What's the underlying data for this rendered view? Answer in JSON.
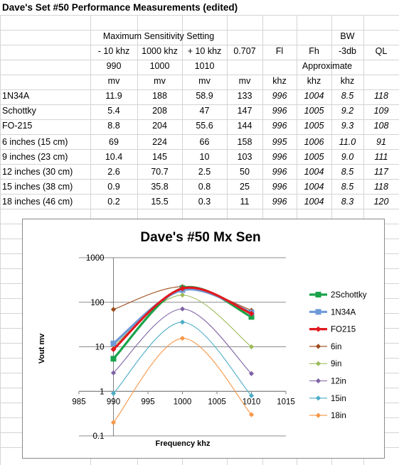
{
  "sheet": {
    "title": "Dave's Set #50 Performance Measurements (edited)",
    "group_header": "Maximum Sensitivity Setting",
    "bw_label": "BW",
    "approx_label": "Approximate",
    "col_heads": [
      "- 10 khz",
      "1000 khz",
      "+ 10 khz",
      "0.707",
      "Fl",
      "Fh",
      "-3db",
      "QL"
    ],
    "freq_row": [
      "990",
      "1000",
      "1010"
    ],
    "unit_row": [
      "mv",
      "mv",
      "mv",
      "mv",
      "khz",
      "khz",
      "khz"
    ],
    "rows": [
      {
        "label": "1N34A",
        "v": [
          "11.9",
          "188",
          "58.9",
          "133",
          "996",
          "1004",
          "8.5",
          "118"
        ]
      },
      {
        "label": "Schottky",
        "v": [
          "5.4",
          "208",
          "47",
          "147",
          "996",
          "1005",
          "9.2",
          "109"
        ]
      },
      {
        "label": "FO-215",
        "v": [
          "8.8",
          "204",
          "55.6",
          "144",
          "996",
          "1005",
          "9.3",
          "108"
        ]
      },
      {
        "label": "6 inches (15 cm)",
        "v": [
          "69",
          "224",
          "66",
          "158",
          "995",
          "1006",
          "11.0",
          "91"
        ]
      },
      {
        "label": "9 inches (23 cm)",
        "v": [
          "10.4",
          "145",
          "10",
          "103",
          "996",
          "1005",
          "9.0",
          "111"
        ]
      },
      {
        "label": "12 inches (30 cm)",
        "v": [
          "2.6",
          "70.7",
          "2.5",
          "50",
          "996",
          "1004",
          "8.5",
          "117"
        ]
      },
      {
        "label": "15 inches (38 cm)",
        "v": [
          "0.9",
          "35.8",
          "0.8",
          "25",
          "996",
          "1004",
          "8.5",
          "118"
        ]
      },
      {
        "label": "18 inches (46 cm)",
        "v": [
          "0.2",
          "15.5",
          "0.3",
          "11",
          "996",
          "1004",
          "8.3",
          "120"
        ]
      }
    ]
  },
  "chart_data": {
    "type": "line",
    "title": "Dave's #50 Mx Sen",
    "xlabel": "Frequency khz",
    "ylabel": "Vout mv",
    "xlim": [
      985,
      1015
    ],
    "x_ticks": [
      "985",
      "990",
      "995",
      "1000",
      "1005",
      "1010",
      "1015"
    ],
    "y_scale": "log",
    "ylim": [
      0.1,
      1000
    ],
    "y_ticks": [
      "0.1",
      "1",
      "10",
      "100",
      "1000"
    ],
    "grid": "horizontal",
    "legend_position": "right",
    "x": [
      990,
      1000,
      1010
    ],
    "series": [
      {
        "name": "2Schottky",
        "values": [
          5.4,
          208,
          47
        ],
        "color": "#1aa34a",
        "marker": "square",
        "bold": true
      },
      {
        "name": "1N34A",
        "values": [
          11.9,
          188,
          58.9
        ],
        "color": "#6f9ad8",
        "marker": "square",
        "bold": true
      },
      {
        "name": "FO215",
        "values": [
          8.8,
          204,
          55.6
        ],
        "color": "#e0191f",
        "marker": "diamond",
        "bold": true
      },
      {
        "name": "6in",
        "values": [
          69,
          224,
          66
        ],
        "color": "#9c4a1a",
        "marker": "diamond",
        "bold": false
      },
      {
        "name": "9in",
        "values": [
          10.4,
          145,
          10
        ],
        "color": "#9bbb59",
        "marker": "diamond",
        "bold": false
      },
      {
        "name": "12in",
        "values": [
          2.6,
          70.7,
          2.5
        ],
        "color": "#7f63a6",
        "marker": "diamond",
        "bold": false
      },
      {
        "name": "15in",
        "values": [
          0.9,
          35.8,
          0.8
        ],
        "color": "#4aacc6",
        "marker": "diamond",
        "bold": false
      },
      {
        "name": "18in",
        "values": [
          0.2,
          15.5,
          0.3
        ],
        "color": "#f79646",
        "marker": "diamond",
        "bold": false
      }
    ]
  }
}
